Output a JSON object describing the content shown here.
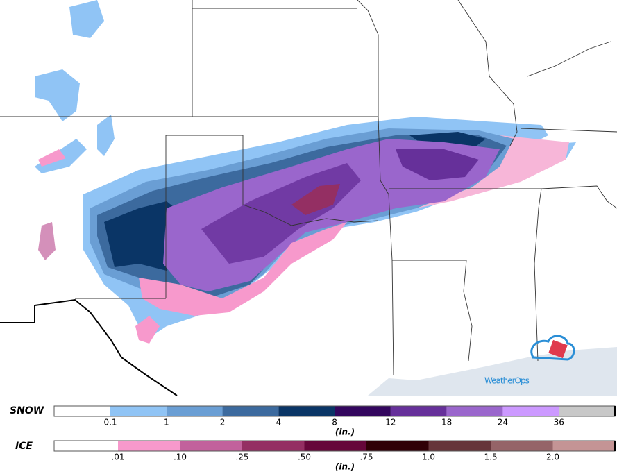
{
  "logo": {
    "text": "WeatherOps"
  },
  "legend": {
    "snow": {
      "label": "SNOW",
      "units": "(in.)",
      "colors": [
        "#ffffff",
        "#90c4f5",
        "#6a9ed4",
        "#3c6a9e",
        "#0a3566",
        "#33065e",
        "#66309a",
        "#9a66cc",
        "#cc99ff",
        "#c8c8c8"
      ],
      "labels": [
        "0.1",
        "1",
        "2",
        "4",
        "8",
        "12",
        "18",
        "24",
        "36"
      ]
    },
    "ice": {
      "label": "ICE",
      "units": "(in.)",
      "colors": [
        "#ffffff",
        "#f799cc",
        "#c2619c",
        "#942f63",
        "#66073a",
        "#300006",
        "#66353a",
        "#956468",
        "#c49495"
      ],
      "labels": [
        ".01",
        ".10",
        ".25",
        ".50",
        ".75",
        "1.0",
        "1.5",
        "2.0"
      ]
    }
  }
}
